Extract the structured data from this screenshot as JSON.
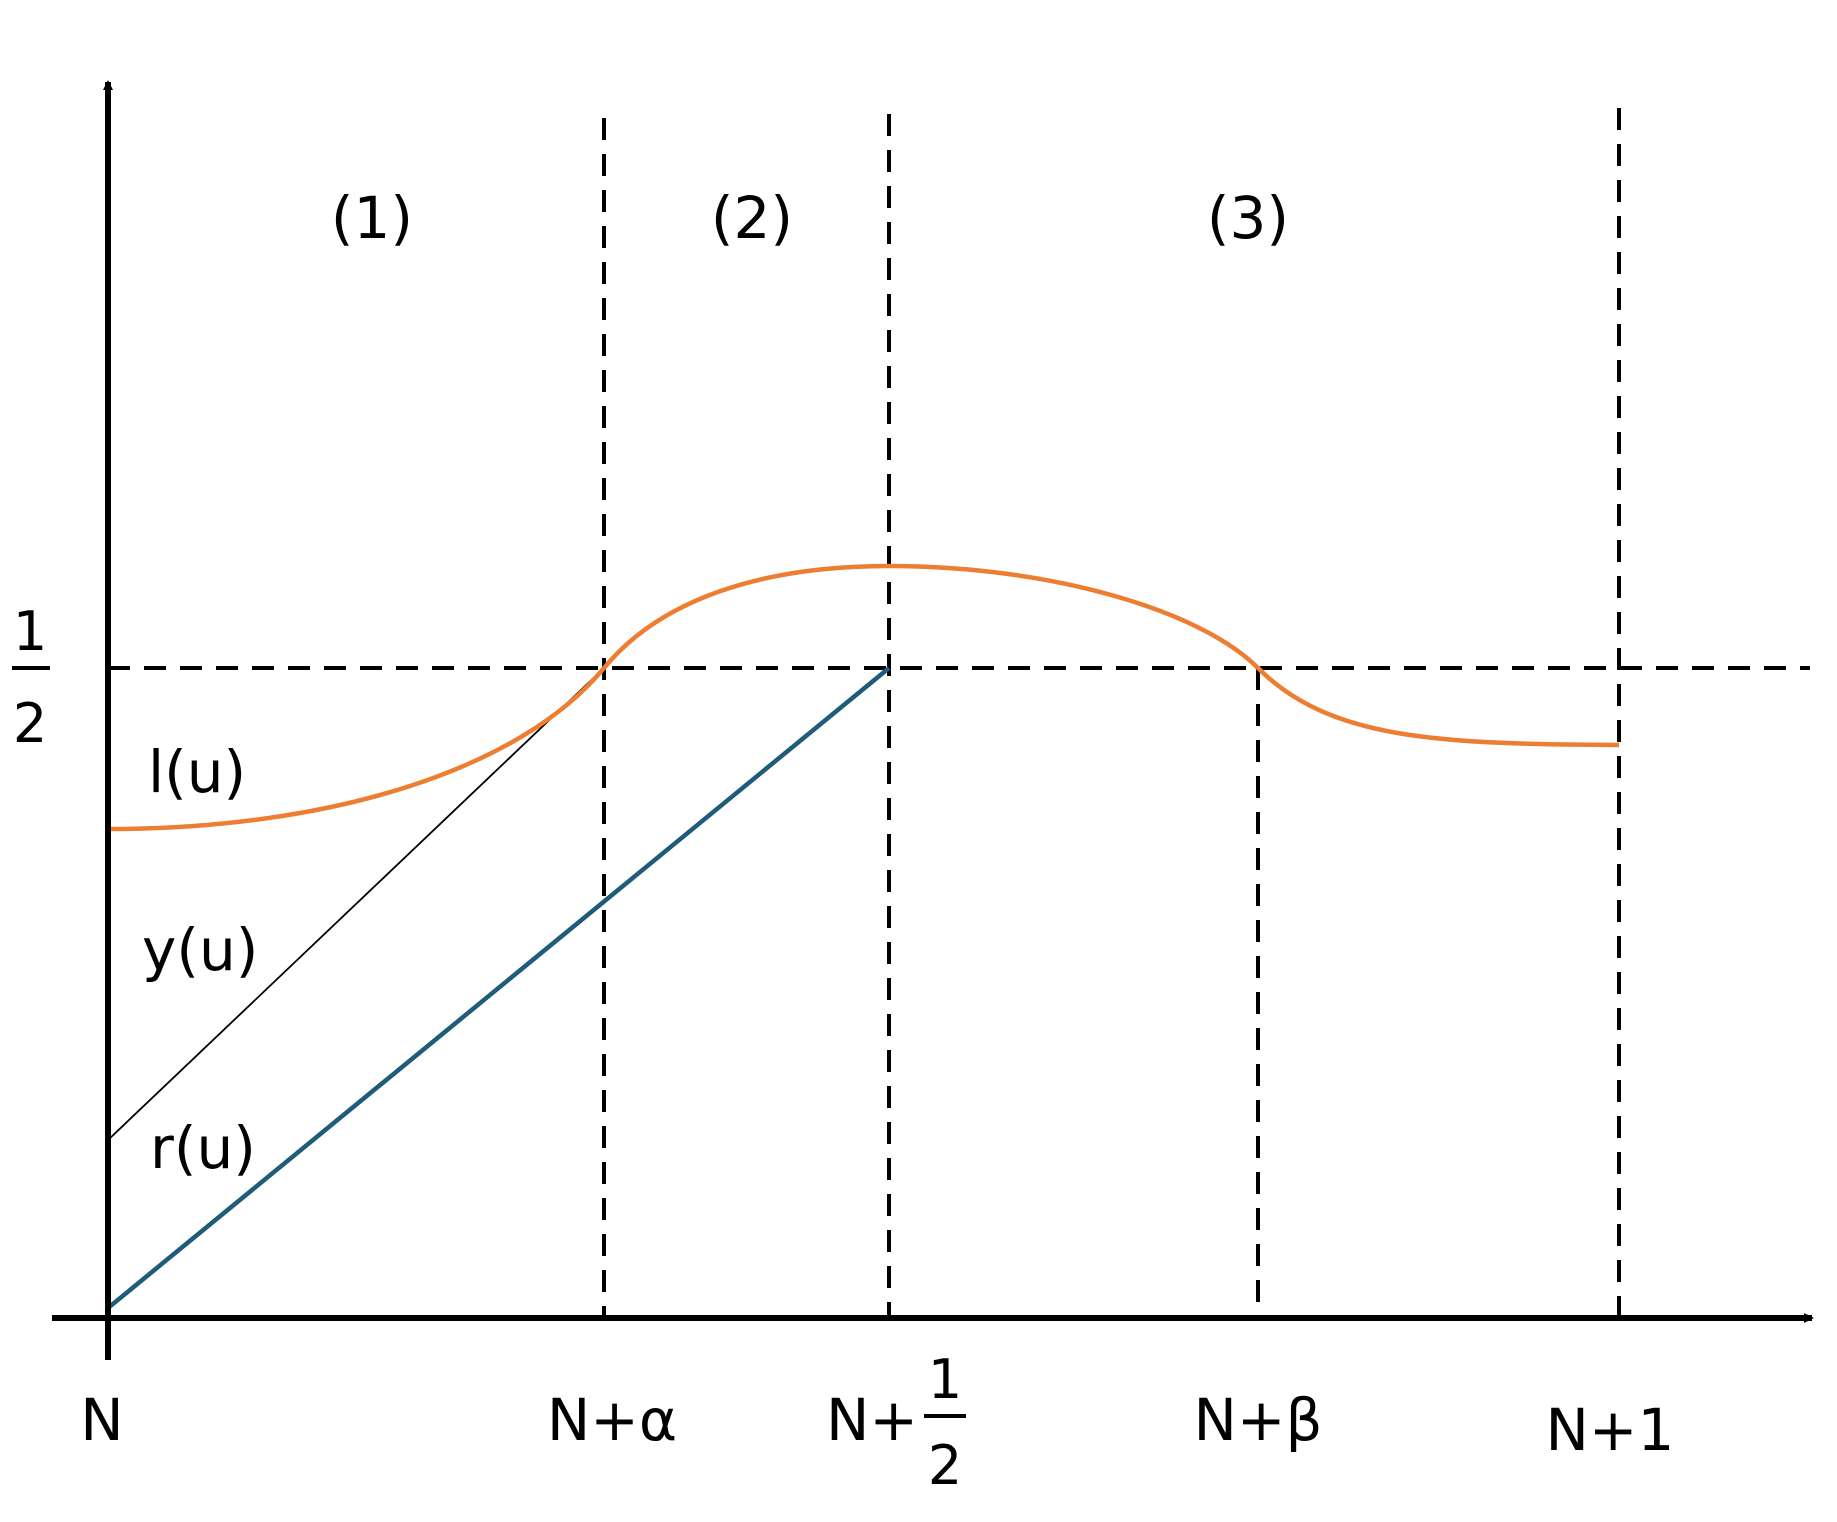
{
  "regions": {
    "one": "(1)",
    "two": "(2)",
    "three": "(3)"
  },
  "curves": {
    "l": "l(u)",
    "y": "y(u)",
    "r": "r(u)"
  },
  "y_axis": {
    "half_num": "1",
    "half_den": "2"
  },
  "x_axis": {
    "n": "N",
    "n_alpha": "N+α",
    "n_half_prefix": "N+",
    "n_half_num": "1",
    "n_half_den": "2",
    "n_beta": "N+β",
    "n_one": "N+1"
  },
  "colors": {
    "l_curve": "#ED7D31",
    "r_line": "#1F5C7A",
    "y_line": "#000000",
    "axes": "#000000",
    "guides": "#000000"
  }
}
